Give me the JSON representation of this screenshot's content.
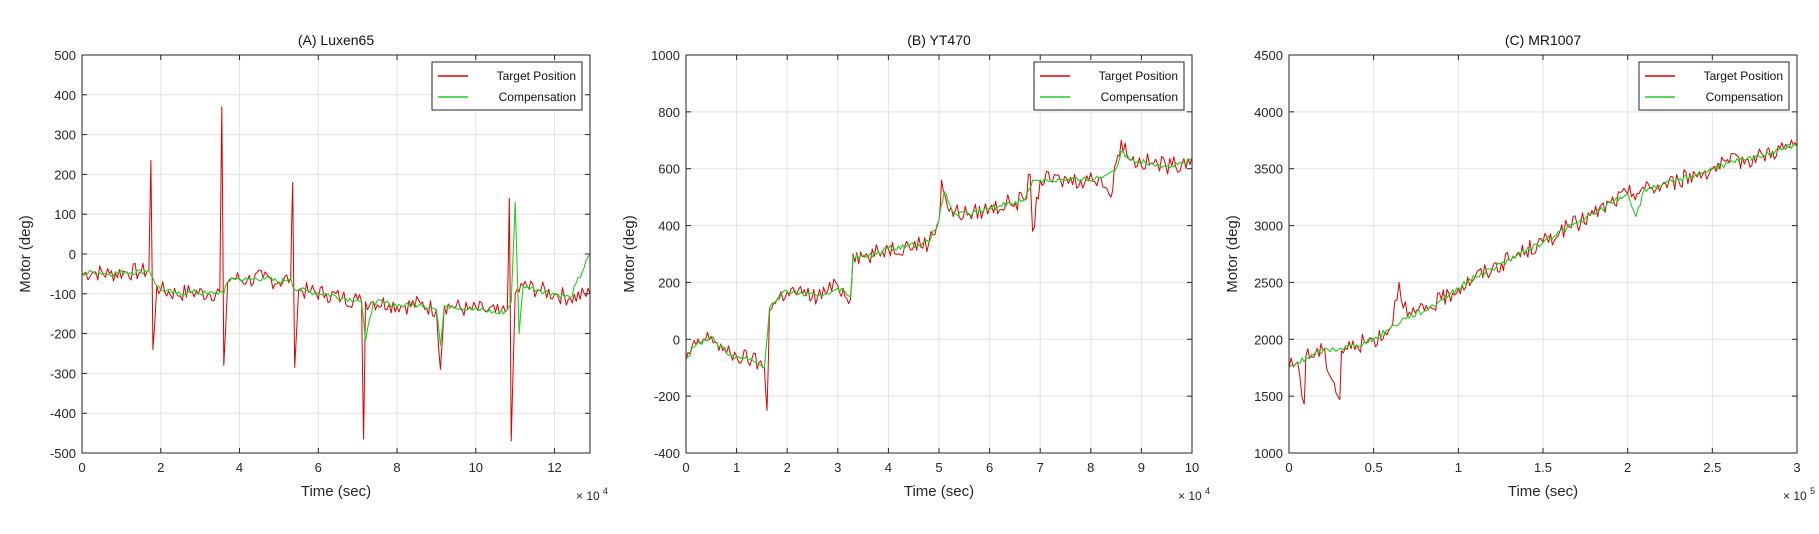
{
  "chart_data": [
    {
      "type": "line",
      "title": "(A) Luxen65",
      "xlabel": "Time (sec)",
      "ylabel": "Motor (deg)",
      "x_exponent": "× 10",
      "x_exponent_power": "4",
      "xlim": [
        0,
        12.9
      ],
      "ylim": [
        -500,
        500
      ],
      "xticks": [
        0,
        2,
        4,
        6,
        8,
        10,
        12
      ],
      "xtick_labels": [
        "0",
        "2",
        "4",
        "6",
        "8",
        "10",
        "12"
      ],
      "yticks": [
        -500,
        -400,
        -300,
        -200,
        -100,
        0,
        100,
        200,
        300,
        400,
        500
      ],
      "ytick_labels": [
        "-500",
        "-400",
        "-300",
        "-200",
        "-100",
        "0",
        "100",
        "200",
        "300",
        "400",
        "500"
      ],
      "grid": true,
      "legend_position": "top-right",
      "series": [
        {
          "name": "Target Position",
          "color": "#e00000",
          "x": [
            0,
            0.3,
            0.7,
            1.1,
            1.5,
            1.7,
            1.75,
            1.8,
            1.9,
            2.0,
            2.4,
            2.8,
            3.2,
            3.5,
            3.55,
            3.6,
            3.7,
            3.8,
            4.2,
            4.6,
            5.0,
            5.3,
            5.35,
            5.4,
            5.5,
            5.8,
            6.2,
            6.6,
            7.0,
            7.1,
            7.15,
            7.2,
            7.4,
            7.8,
            8.2,
            8.6,
            9.0,
            9.1,
            9.2,
            9.4,
            9.8,
            10.2,
            10.6,
            10.8,
            10.85,
            10.9,
            11.0,
            11.2,
            11.6,
            12.0,
            12.4,
            12.9
          ],
          "y": [
            -50,
            -45,
            -50,
            -45,
            -45,
            -40,
            235,
            -240,
            -80,
            -90,
            -100,
            -95,
            -100,
            -95,
            370,
            -280,
            -70,
            -60,
            -65,
            -60,
            -70,
            -60,
            180,
            -285,
            -90,
            -95,
            -100,
            -110,
            -115,
            -120,
            -465,
            -120,
            -120,
            -125,
            -130,
            -125,
            -140,
            -290,
            -130,
            -130,
            -140,
            -140,
            -150,
            -140,
            140,
            -470,
            -100,
            -80,
            -90,
            -100,
            -110,
            -100
          ]
        },
        {
          "name": "Compensation",
          "color": "#22cc22",
          "x": [
            0,
            0.3,
            0.7,
            1.1,
            1.5,
            1.7,
            1.8,
            1.9,
            2.0,
            2.4,
            2.8,
            3.2,
            3.5,
            3.6,
            3.7,
            3.8,
            4.2,
            4.6,
            5.0,
            5.3,
            5.4,
            5.5,
            5.8,
            6.2,
            6.6,
            7.0,
            7.1,
            7.2,
            7.4,
            7.8,
            8.2,
            8.6,
            9.0,
            9.1,
            9.2,
            9.4,
            9.8,
            10.2,
            10.6,
            10.8,
            10.9,
            11.0,
            11.1,
            11.2,
            11.6,
            12.0,
            12.4,
            12.9
          ],
          "y": [
            -50,
            -45,
            -50,
            -45,
            -45,
            -40,
            -60,
            -80,
            -90,
            -100,
            -95,
            -100,
            -95,
            -100,
            -70,
            -60,
            -65,
            -60,
            -70,
            -60,
            -90,
            -90,
            -95,
            -100,
            -110,
            -115,
            -120,
            -220,
            -120,
            -125,
            -130,
            -125,
            -140,
            -230,
            -130,
            -130,
            -140,
            -140,
            -150,
            -140,
            -120,
            130,
            -200,
            -80,
            -90,
            -100,
            -110,
            0
          ]
        }
      ]
    },
    {
      "type": "line",
      "title": "(B) YT470",
      "xlabel": "Time (sec)",
      "ylabel": "Motor (deg)",
      "x_exponent": "× 10",
      "x_exponent_power": "4",
      "xlim": [
        0,
        10
      ],
      "ylim": [
        -400,
        1000
      ],
      "xticks": [
        0,
        1,
        2,
        3,
        4,
        5,
        6,
        7,
        8,
        9,
        10
      ],
      "xtick_labels": [
        "0",
        "1",
        "2",
        "3",
        "4",
        "5",
        "6",
        "7",
        "8",
        "9",
        "10"
      ],
      "yticks": [
        -400,
        -200,
        0,
        200,
        400,
        600,
        800,
        1000
      ],
      "ytick_labels": [
        "-400",
        "-200",
        "0",
        "200",
        "400",
        "600",
        "800",
        "1000"
      ],
      "grid": true,
      "legend_position": "top-right",
      "series": [
        {
          "name": "Target Position",
          "color": "#e00000",
          "x": [
            0,
            0.2,
            0.5,
            0.8,
            1.0,
            1.3,
            1.55,
            1.6,
            1.65,
            1.8,
            2.0,
            2.3,
            2.6,
            3.0,
            3.25,
            3.3,
            3.6,
            4.0,
            4.4,
            4.8,
            5.0,
            5.05,
            5.2,
            5.6,
            6.0,
            6.4,
            6.7,
            6.8,
            6.85,
            7.0,
            7.4,
            7.8,
            8.2,
            8.4,
            8.5,
            8.6,
            8.8,
            9.2,
            9.6,
            10.0
          ],
          "y": [
            -70,
            -20,
            10,
            -50,
            -60,
            -70,
            -100,
            -250,
            100,
            140,
            170,
            160,
            150,
            190,
            140,
            300,
            290,
            320,
            330,
            340,
            420,
            560,
            450,
            440,
            460,
            480,
            490,
            580,
            380,
            560,
            560,
            560,
            570,
            500,
            620,
            700,
            630,
            620,
            610,
            640
          ]
        },
        {
          "name": "Compensation",
          "color": "#22cc22",
          "x": [
            0,
            0.2,
            0.5,
            0.8,
            1.0,
            1.3,
            1.55,
            1.65,
            1.8,
            2.0,
            2.3,
            2.6,
            3.0,
            3.25,
            3.3,
            3.6,
            4.0,
            4.4,
            4.8,
            5.0,
            5.1,
            5.3,
            5.6,
            6.0,
            6.4,
            6.7,
            6.85,
            7.0,
            7.4,
            7.8,
            8.2,
            8.5,
            8.6,
            8.8,
            9.2,
            9.6,
            10.0
          ],
          "y": [
            -70,
            -20,
            10,
            -50,
            -60,
            -70,
            -100,
            110,
            140,
            170,
            160,
            150,
            180,
            150,
            290,
            290,
            320,
            330,
            340,
            420,
            520,
            440,
            440,
            460,
            480,
            490,
            560,
            560,
            560,
            560,
            570,
            600,
            660,
            630,
            620,
            610,
            630
          ]
        }
      ]
    },
    {
      "type": "line",
      "title": "(C) MR1007",
      "xlabel": "Time (sec)",
      "ylabel": "Motor (deg)",
      "x_exponent": "× 10",
      "x_exponent_power": "5",
      "xlim": [
        0,
        3
      ],
      "ylim": [
        1000,
        4500
      ],
      "xticks": [
        0,
        0.5,
        1,
        1.5,
        2,
        2.5,
        3
      ],
      "xtick_labels": [
        "0",
        "0.5",
        "1",
        "1.5",
        "2",
        "2.5",
        "3"
      ],
      "yticks": [
        1000,
        1500,
        2000,
        2500,
        3000,
        3500,
        4000,
        4500
      ],
      "ytick_labels": [
        "1000",
        "1500",
        "2000",
        "2500",
        "3000",
        "3500",
        "4000",
        "4500"
      ],
      "grid": true,
      "legend_position": "top-right",
      "series": [
        {
          "name": "Target Position",
          "color": "#e00000",
          "x": [
            0,
            0.05,
            0.09,
            0.1,
            0.2,
            0.3,
            0.31,
            0.4,
            0.5,
            0.6,
            0.65,
            0.7,
            0.8,
            0.9,
            1.0,
            1.1,
            1.2,
            1.3,
            1.4,
            1.5,
            1.6,
            1.7,
            1.8,
            1.9,
            2.0,
            2.1,
            2.2,
            2.3,
            2.4,
            2.5,
            2.6,
            2.7,
            2.8,
            2.9,
            3.0
          ],
          "y": [
            1750,
            1800,
            1430,
            1850,
            1900,
            1470,
            1900,
            1950,
            2000,
            2100,
            2500,
            2200,
            2250,
            2350,
            2450,
            2550,
            2620,
            2700,
            2780,
            2850,
            2950,
            3020,
            3100,
            3200,
            3280,
            3320,
            3350,
            3400,
            3450,
            3500,
            3550,
            3580,
            3620,
            3680,
            3700
          ]
        },
        {
          "name": "Compensation",
          "color": "#22cc22",
          "x": [
            0,
            0.1,
            0.2,
            0.3,
            0.4,
            0.5,
            0.6,
            0.7,
            0.8,
            0.9,
            1.0,
            1.1,
            1.2,
            1.3,
            1.4,
            1.5,
            1.6,
            1.7,
            1.8,
            1.9,
            2.0,
            2.05,
            2.1,
            2.2,
            2.3,
            2.4,
            2.5,
            2.6,
            2.7,
            2.8,
            2.9,
            3.0
          ],
          "y": [
            1750,
            1830,
            1900,
            1920,
            1950,
            2000,
            2100,
            2200,
            2250,
            2350,
            2450,
            2550,
            2620,
            2700,
            2780,
            2850,
            2950,
            3020,
            3100,
            3200,
            3280,
            3080,
            3320,
            3350,
            3400,
            3450,
            3500,
            3550,
            3580,
            3620,
            3680,
            3700
          ]
        }
      ]
    }
  ]
}
